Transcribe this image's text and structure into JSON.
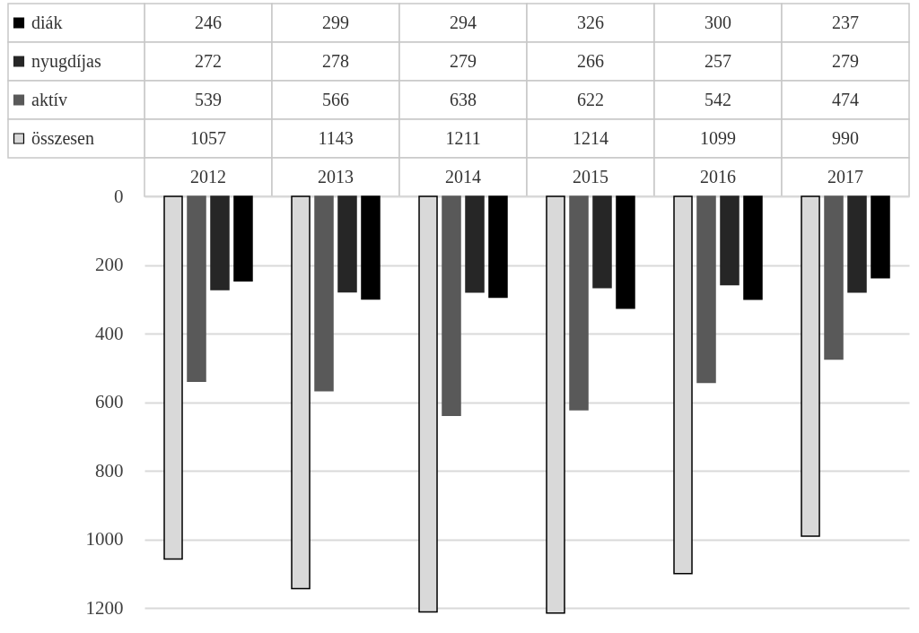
{
  "chart_data": {
    "type": "bar",
    "categories": [
      "2012",
      "2013",
      "2014",
      "2015",
      "2016",
      "2017"
    ],
    "series": [
      {
        "name": "összesen",
        "color": "#d9d9d9",
        "values": [
          1057,
          1143,
          1211,
          1214,
          1099,
          990
        ]
      },
      {
        "name": "aktív",
        "color": "#595959",
        "values": [
          539,
          566,
          638,
          622,
          542,
          474
        ]
      },
      {
        "name": "nyugdíjas",
        "color": "#262626",
        "values": [
          272,
          278,
          279,
          266,
          257,
          279
        ]
      },
      {
        "name": "diák",
        "color": "#000000",
        "values": [
          246,
          299,
          294,
          326,
          300,
          237
        ]
      }
    ],
    "ylim": [
      1220,
      0
    ],
    "yticks": [
      0,
      200,
      400,
      600,
      800,
      1000,
      1200
    ],
    "grid": "y",
    "legend": "top left",
    "data_labels": true
  }
}
